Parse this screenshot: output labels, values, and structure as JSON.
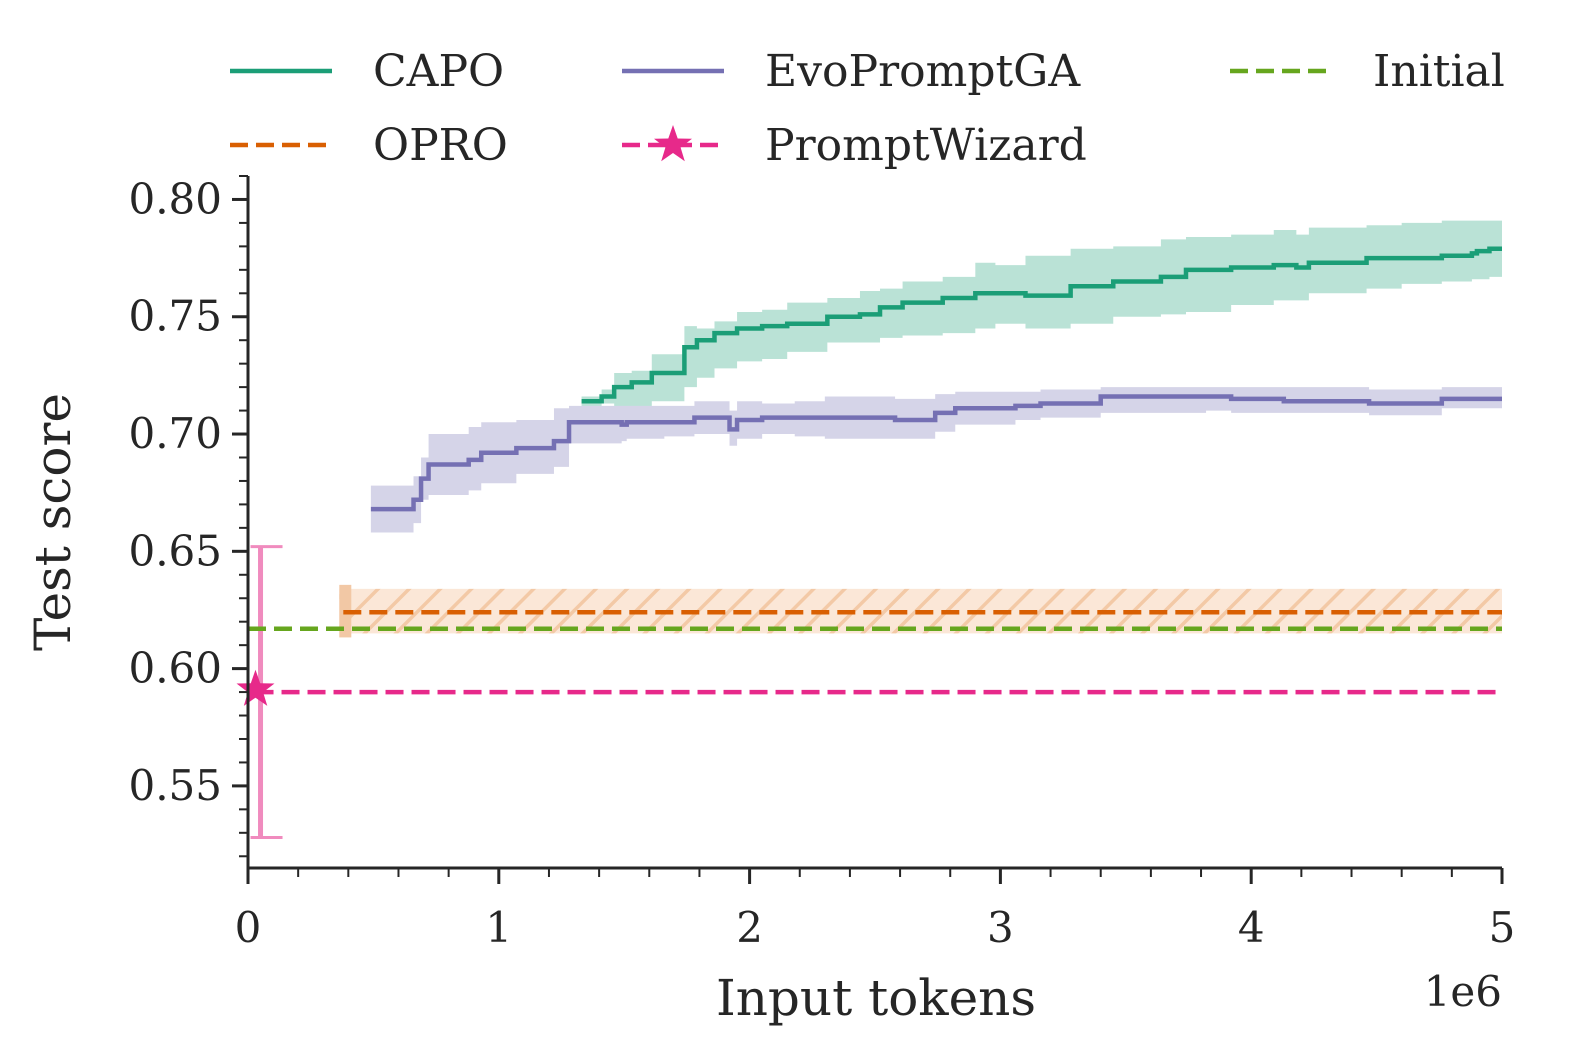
{
  "chart_data": {
    "type": "line",
    "title": "",
    "xlabel": "Input tokens",
    "ylabel": "Test score",
    "x_offset_label": "1e6",
    "xlim": [
      0,
      5
    ],
    "ylim": [
      0.515,
      0.81
    ],
    "x_ticks": [
      0,
      1,
      2,
      3,
      4,
      5
    ],
    "x_tick_labels": [
      "0",
      "1",
      "2",
      "3",
      "4",
      "5"
    ],
    "y_ticks": [
      0.55,
      0.6,
      0.65,
      0.7,
      0.75,
      0.8
    ],
    "y_tick_labels": [
      "0.55",
      "0.60",
      "0.65",
      "0.70",
      "0.75",
      "0.80"
    ],
    "grid": false,
    "legend_position": "top",
    "legend_order": [
      "CAPO",
      "OPRO",
      "EvoPromptGA",
      "PromptWizard",
      "Initial"
    ],
    "series": [
      {
        "name": "CAPO",
        "color": "#1b9e77",
        "style": "solid-step",
        "x": [
          1.33,
          1.41,
          1.46,
          1.53,
          1.61,
          1.74,
          1.79,
          1.86,
          1.95,
          2.05,
          2.15,
          2.31,
          2.44,
          2.52,
          2.61,
          2.77,
          2.9,
          2.98,
          3.1,
          3.28,
          3.45,
          3.64,
          3.74,
          3.92,
          4.09,
          4.18,
          4.23,
          4.46,
          4.6,
          4.76,
          4.85,
          4.88,
          4.9,
          4.95,
          5.0
        ],
        "y": [
          0.714,
          0.716,
          0.72,
          0.722,
          0.726,
          0.737,
          0.74,
          0.743,
          0.745,
          0.746,
          0.747,
          0.75,
          0.751,
          0.754,
          0.756,
          0.758,
          0.76,
          0.76,
          0.759,
          0.763,
          0.765,
          0.767,
          0.77,
          0.771,
          0.772,
          0.771,
          0.773,
          0.775,
          0.775,
          0.776,
          0.776,
          0.777,
          0.778,
          0.779,
          0.779
        ],
        "band_lower": [
          0.712,
          0.713,
          0.712,
          0.712,
          0.714,
          0.72,
          0.724,
          0.728,
          0.731,
          0.732,
          0.735,
          0.739,
          0.739,
          0.741,
          0.742,
          0.743,
          0.745,
          0.747,
          0.745,
          0.747,
          0.75,
          0.751,
          0.752,
          0.755,
          0.757,
          0.757,
          0.76,
          0.762,
          0.764,
          0.765,
          0.765,
          0.766,
          0.766,
          0.767,
          0.767
        ],
        "band_upper": [
          0.716,
          0.719,
          0.726,
          0.727,
          0.734,
          0.746,
          0.745,
          0.748,
          0.752,
          0.753,
          0.756,
          0.758,
          0.761,
          0.762,
          0.765,
          0.767,
          0.773,
          0.772,
          0.776,
          0.779,
          0.78,
          0.783,
          0.784,
          0.785,
          0.787,
          0.785,
          0.788,
          0.789,
          0.79,
          0.791,
          0.791,
          0.791,
          0.791,
          0.791,
          0.791
        ]
      },
      {
        "name": "OPRO",
        "color": "#d95f02",
        "style": "dashed",
        "x": [
          0.38,
          5.0
        ],
        "y": [
          0.624,
          0.624
        ],
        "band_lower": [
          0.615,
          0.615
        ],
        "band_upper": [
          0.634,
          0.634
        ],
        "band_hatch": true
      },
      {
        "name": "EvoPromptGA",
        "color": "#7570b3",
        "style": "solid-step",
        "x": [
          0.49,
          0.66,
          0.69,
          0.72,
          0.88,
          0.93,
          1.07,
          1.22,
          1.28,
          1.49,
          1.51,
          1.66,
          1.78,
          1.92,
          1.95,
          2.05,
          2.18,
          2.3,
          2.48,
          2.58,
          2.74,
          2.82,
          3.06,
          3.16,
          3.4,
          3.82,
          3.92,
          4.13,
          4.47,
          4.58,
          4.76,
          5.0
        ],
        "y": [
          0.668,
          0.672,
          0.681,
          0.687,
          0.689,
          0.692,
          0.694,
          0.697,
          0.705,
          0.704,
          0.705,
          0.705,
          0.707,
          0.702,
          0.706,
          0.707,
          0.707,
          0.707,
          0.707,
          0.706,
          0.709,
          0.711,
          0.712,
          0.713,
          0.716,
          0.716,
          0.715,
          0.714,
          0.713,
          0.713,
          0.715,
          0.715
        ],
        "band_lower": [
          0.658,
          0.662,
          0.672,
          0.674,
          0.676,
          0.679,
          0.683,
          0.686,
          0.696,
          0.697,
          0.698,
          0.699,
          0.7,
          0.695,
          0.698,
          0.7,
          0.699,
          0.698,
          0.698,
          0.698,
          0.701,
          0.704,
          0.706,
          0.707,
          0.709,
          0.71,
          0.709,
          0.709,
          0.708,
          0.708,
          0.711,
          0.711
        ],
        "band_upper": [
          0.678,
          0.682,
          0.69,
          0.7,
          0.703,
          0.705,
          0.706,
          0.711,
          0.712,
          0.712,
          0.712,
          0.712,
          0.714,
          0.71,
          0.714,
          0.713,
          0.714,
          0.716,
          0.716,
          0.715,
          0.717,
          0.718,
          0.718,
          0.719,
          0.72,
          0.72,
          0.72,
          0.72,
          0.719,
          0.719,
          0.72,
          0.72
        ]
      },
      {
        "name": "PromptWizard",
        "color": "#e7298a",
        "style": "dashed-star",
        "marker_x": 0.03,
        "marker_y": 0.591,
        "x": [
          0.03,
          5.0
        ],
        "y": [
          0.59,
          0.59
        ],
        "error_low": 0.528,
        "error_high": 0.652
      },
      {
        "name": "Initial",
        "color": "#66a61e",
        "style": "dashed",
        "x": [
          0.0,
          5.0
        ],
        "y": [
          0.617,
          0.617
        ]
      }
    ]
  }
}
